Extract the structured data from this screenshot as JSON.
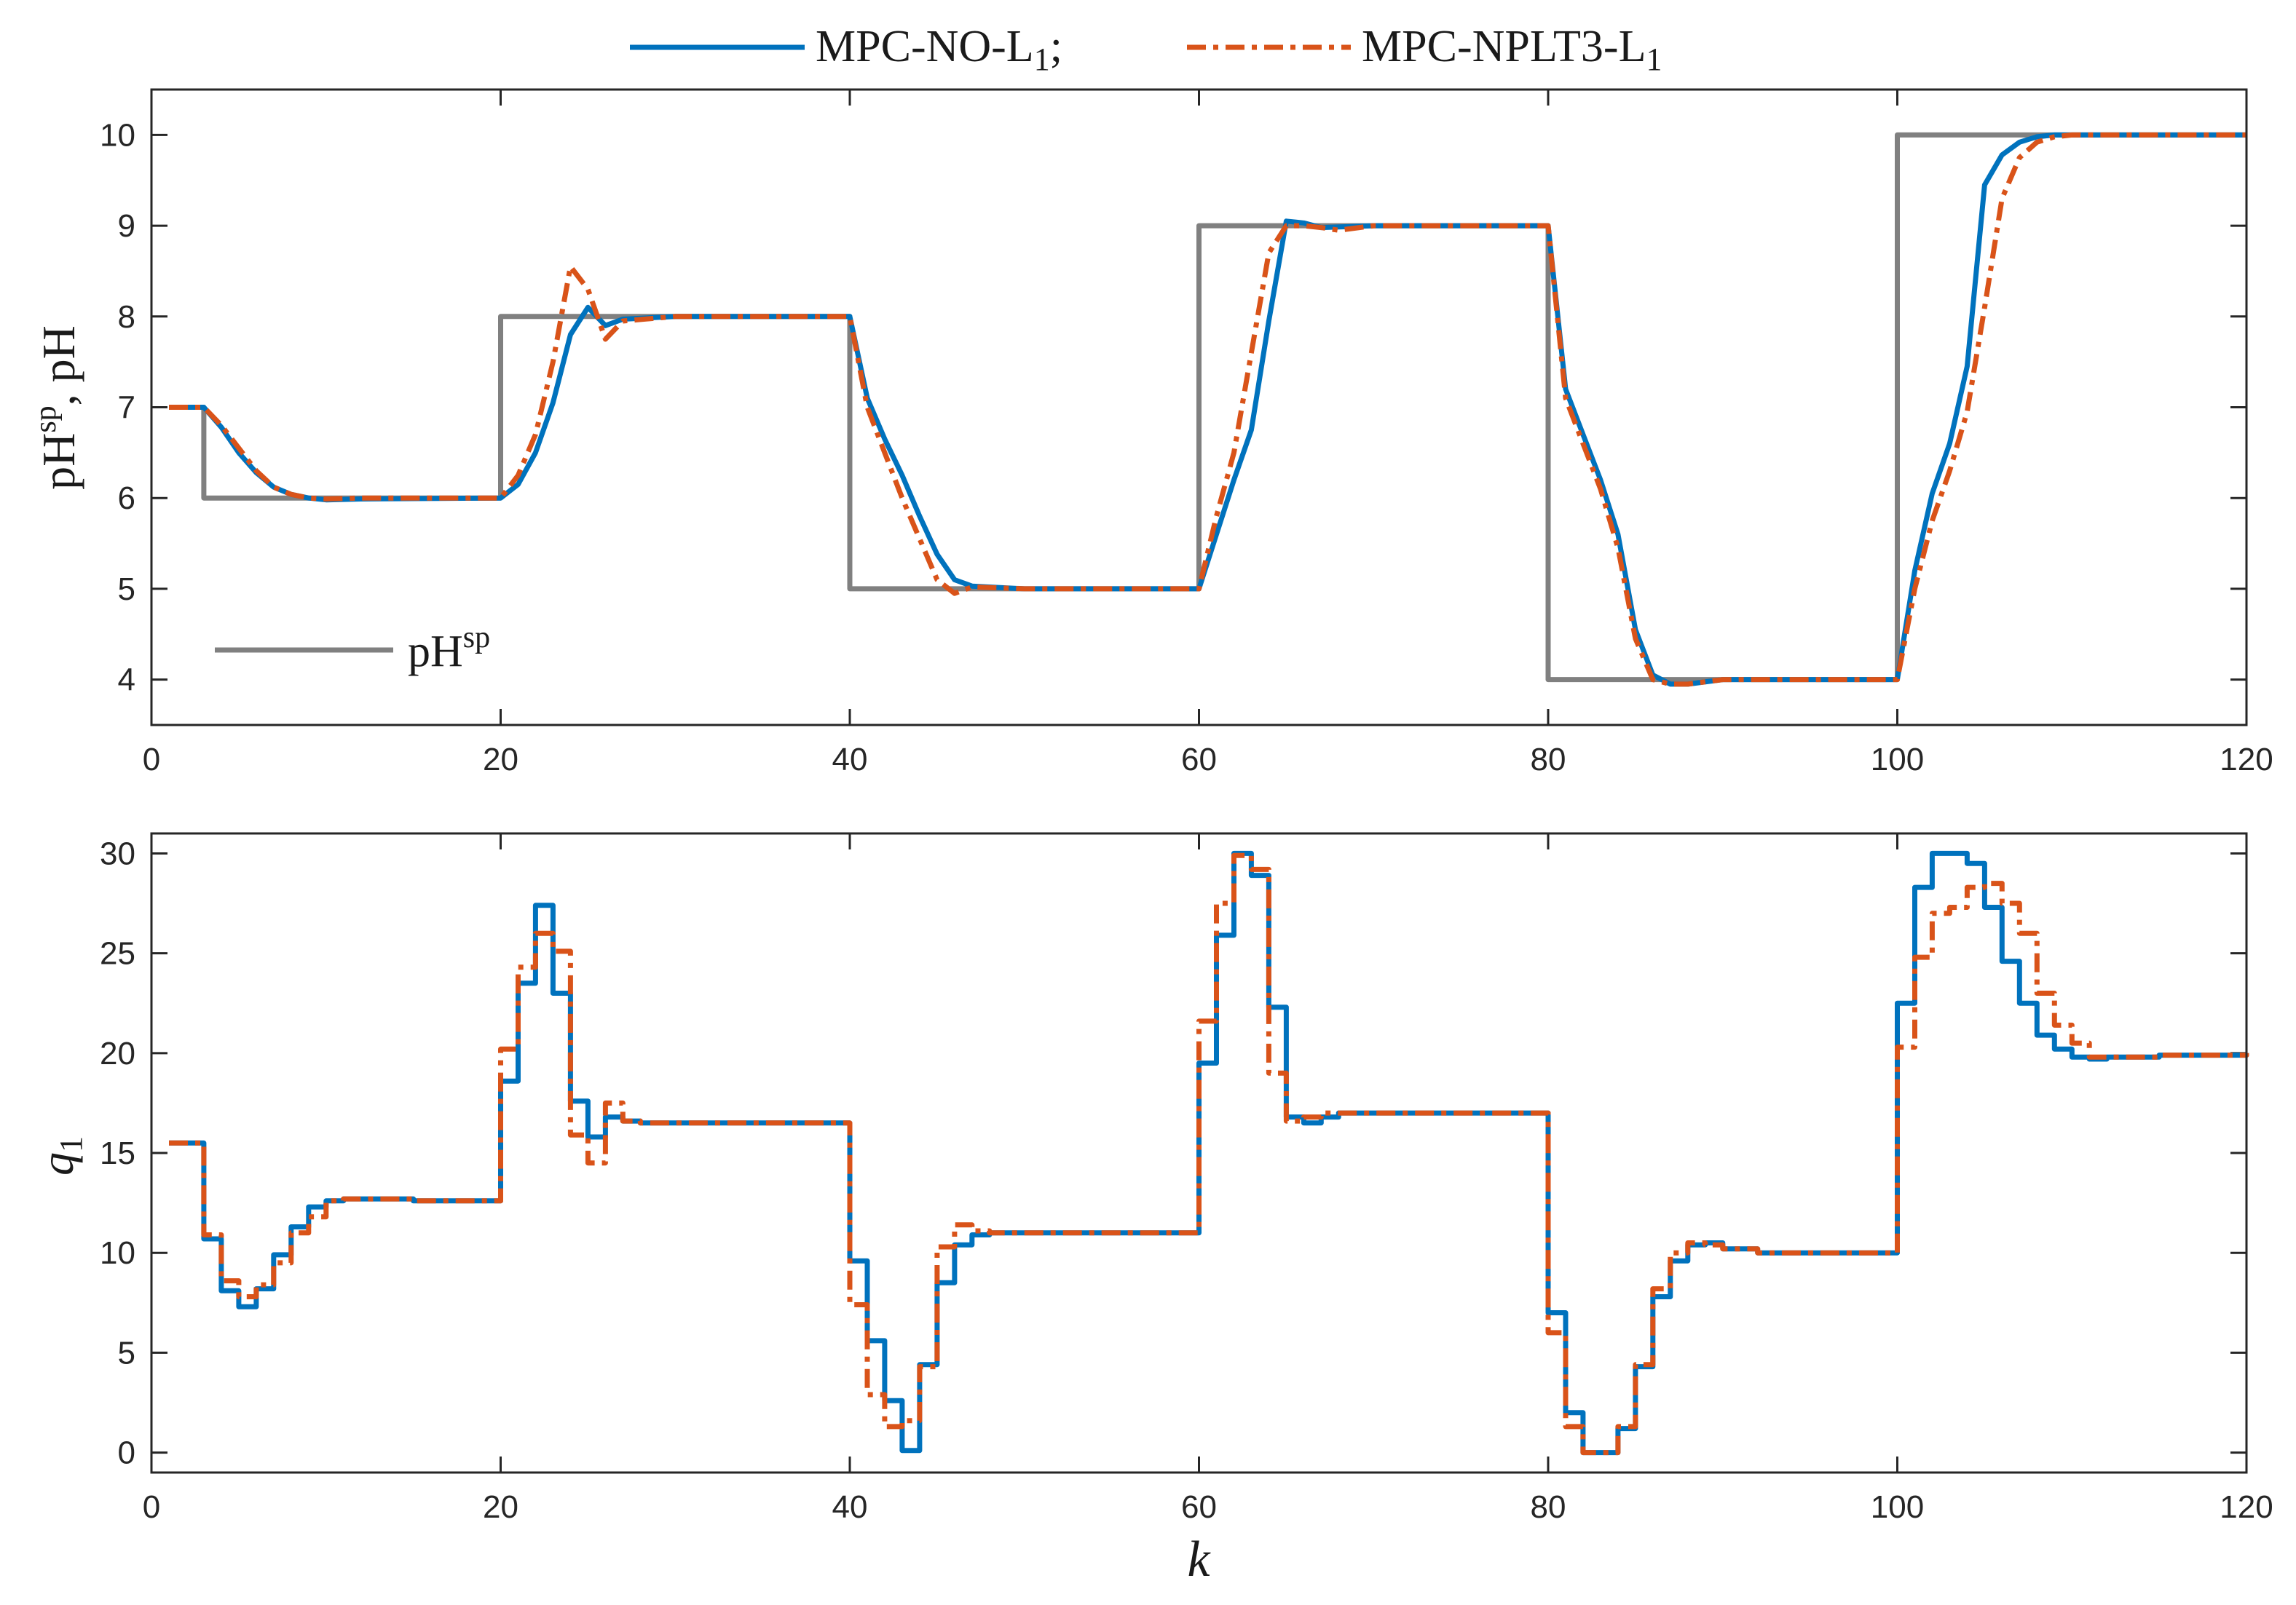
{
  "legend": {
    "series_no": "MPC-NO-L",
    "series_no_sub": "1",
    "separator": ";",
    "series_nplt3": "MPC-NPLT3-L",
    "series_nplt3_sub": "1"
  },
  "colors": {
    "no": "#0072bd",
    "nplt3": "#d95319",
    "setpoint": "#808080",
    "axes": "#262626"
  },
  "chart_data": [
    {
      "type": "line",
      "name": "ph-plot",
      "ylabel_main": "pH",
      "ylabel_sup": "sp",
      "ylabel_rest": ",  pH",
      "setpoint_legend_main": "pH",
      "setpoint_legend_sup": "sp",
      "setpoint_legend_placement": "bottom-left",
      "xlim": [
        0,
        120
      ],
      "ylim": [
        3.5,
        10.5
      ],
      "xticks": [
        "0",
        "20",
        "40",
        "60",
        "80",
        "100",
        "120"
      ],
      "yticks": [
        "4",
        "5",
        "6",
        "7",
        "8",
        "9",
        "10"
      ],
      "series": [
        {
          "key": "setpoint",
          "name": "pHsp",
          "style": "solid",
          "x": [
            1,
            3,
            3,
            20,
            20,
            40,
            40,
            60,
            60,
            80,
            80,
            100,
            100,
            120
          ],
          "y": [
            7,
            7,
            6,
            6,
            8,
            8,
            5,
            5,
            9,
            9,
            4,
            4,
            10,
            10
          ]
        },
        {
          "key": "no",
          "name": "MPC-NO-L1",
          "style": "solid",
          "x": [
            1,
            3,
            4,
            5,
            6,
            7,
            8,
            9,
            10,
            12,
            20,
            21,
            22,
            23,
            24,
            25,
            26,
            27,
            30,
            40,
            41,
            42,
            43,
            44,
            45,
            46,
            47,
            50,
            60,
            61,
            62,
            63,
            64,
            65,
            66,
            67,
            70,
            80,
            81,
            82,
            83,
            84,
            85,
            86,
            87,
            88,
            90,
            100,
            101,
            102,
            103,
            104,
            105,
            106,
            107,
            108,
            109,
            110,
            120
          ],
          "y": [
            7,
            7,
            6.78,
            6.5,
            6.28,
            6.12,
            6.04,
            6.0,
            5.98,
            5.99,
            6.0,
            6.15,
            6.5,
            7.05,
            7.8,
            8.1,
            7.9,
            7.97,
            8.0,
            8.0,
            7.1,
            6.65,
            6.25,
            5.8,
            5.38,
            5.1,
            5.03,
            5.0,
            5.0,
            5.6,
            6.2,
            6.75,
            7.95,
            9.05,
            9.03,
            8.98,
            9.0,
            9.0,
            7.2,
            6.7,
            6.2,
            5.6,
            4.55,
            4.05,
            3.95,
            3.95,
            4.0,
            4.0,
            5.2,
            6.05,
            6.6,
            7.45,
            9.45,
            9.78,
            9.92,
            9.98,
            10.0,
            10.0,
            10.0
          ]
        },
        {
          "key": "nplt3",
          "name": "MPC-NPLT3-L1",
          "style": "dashdot",
          "x": [
            1,
            3,
            4,
            5,
            6,
            7,
            8,
            9,
            10,
            12,
            20,
            21,
            22,
            23,
            24,
            25,
            26,
            27,
            30,
            40,
            41,
            42,
            43,
            44,
            45,
            46,
            47,
            50,
            60,
            61,
            62,
            63,
            64,
            65,
            66,
            67,
            68,
            70,
            80,
            81,
            82,
            83,
            84,
            85,
            86,
            87,
            88,
            90,
            100,
            101,
            102,
            103,
            104,
            105,
            106,
            107,
            108,
            109,
            110,
            120
          ],
          "y": [
            7,
            7,
            6.8,
            6.55,
            6.3,
            6.12,
            6.04,
            6.0,
            5.99,
            6.0,
            6.0,
            6.25,
            6.7,
            7.5,
            8.55,
            8.3,
            7.75,
            7.95,
            8.0,
            8.0,
            7.0,
            6.5,
            6.0,
            5.55,
            5.1,
            4.95,
            5.02,
            5.0,
            5.0,
            5.8,
            6.5,
            7.6,
            8.7,
            9.0,
            9.0,
            8.98,
            8.95,
            9.0,
            9.0,
            7.1,
            6.6,
            6.1,
            5.45,
            4.45,
            4.0,
            3.95,
            3.95,
            4.0,
            4.0,
            5.0,
            5.75,
            6.3,
            6.95,
            8.1,
            9.3,
            9.75,
            9.92,
            9.98,
            10.0,
            10.0
          ]
        }
      ]
    },
    {
      "type": "line",
      "name": "q1-plot",
      "step": true,
      "xlabel": "k",
      "ylabel_main": "q",
      "ylabel_sub": "1",
      "xlim": [
        0,
        120
      ],
      "ylim": [
        -1,
        31
      ],
      "xticks": [
        "0",
        "20",
        "40",
        "60",
        "80",
        "100",
        "120"
      ],
      "yticks": [
        "0",
        "5",
        "10",
        "15",
        "20",
        "25",
        "30"
      ],
      "series": [
        {
          "key": "no",
          "name": "MPC-NO-L1",
          "style": "solid",
          "x": [
            1,
            3,
            4,
            5,
            6,
            7,
            8,
            9,
            10,
            11,
            12,
            15,
            20,
            21,
            22,
            23,
            24,
            25,
            26,
            27,
            28,
            30,
            40,
            41,
            42,
            43,
            44,
            45,
            46,
            47,
            48,
            50,
            60,
            61,
            62,
            63,
            64,
            65,
            66,
            67,
            68,
            70,
            80,
            81,
            82,
            83,
            84,
            85,
            86,
            87,
            88,
            89,
            90,
            92,
            100,
            101,
            102,
            103,
            104,
            105,
            106,
            107,
            108,
            109,
            110,
            111,
            112,
            115,
            120
          ],
          "y": [
            15.5,
            10.7,
            8.1,
            7.3,
            8.2,
            9.9,
            11.3,
            12.3,
            12.6,
            12.7,
            12.7,
            12.6,
            18.6,
            23.5,
            27.4,
            23.0,
            17.6,
            15.8,
            16.8,
            16.6,
            16.5,
            16.5,
            9.6,
            5.6,
            2.6,
            0.1,
            4.4,
            8.5,
            10.4,
            10.9,
            11.0,
            11.0,
            19.5,
            25.9,
            30.0,
            28.9,
            22.3,
            16.8,
            16.5,
            16.8,
            17.0,
            17.0,
            7.0,
            2.0,
            0.0,
            0.0,
            1.2,
            4.3,
            7.8,
            9.6,
            10.4,
            10.5,
            10.2,
            10.0,
            22.5,
            28.3,
            30.0,
            30.0,
            29.5,
            27.3,
            24.6,
            22.5,
            20.9,
            20.2,
            19.8,
            19.7,
            19.8,
            19.9,
            20.0
          ]
        },
        {
          "key": "nplt3",
          "name": "MPC-NPLT3-L1",
          "style": "dashdot",
          "x": [
            1,
            3,
            4,
            5,
            6,
            7,
            8,
            9,
            10,
            11,
            12,
            15,
            20,
            21,
            22,
            23,
            24,
            25,
            26,
            27,
            28,
            30,
            40,
            41,
            42,
            43,
            44,
            45,
            46,
            47,
            48,
            50,
            60,
            61,
            62,
            63,
            64,
            65,
            66,
            67,
            68,
            70,
            80,
            81,
            82,
            83,
            84,
            85,
            86,
            87,
            88,
            89,
            90,
            92,
            100,
            101,
            102,
            103,
            104,
            105,
            106,
            107,
            108,
            109,
            110,
            111,
            112,
            115,
            120
          ],
          "y": [
            15.5,
            10.9,
            8.6,
            7.8,
            8.4,
            9.5,
            11.0,
            11.8,
            12.6,
            12.7,
            12.7,
            12.6,
            20.2,
            24.3,
            26.0,
            25.1,
            15.9,
            14.5,
            17.5,
            16.6,
            16.5,
            16.5,
            7.4,
            2.9,
            1.3,
            1.6,
            4.3,
            10.3,
            11.4,
            11.1,
            11.0,
            11.0,
            21.6,
            27.5,
            29.9,
            29.2,
            19.0,
            16.6,
            16.8,
            17.0,
            17.0,
            17.0,
            6.0,
            1.3,
            0.0,
            0.0,
            1.3,
            4.4,
            8.2,
            10.0,
            10.5,
            10.4,
            10.2,
            10.0,
            20.3,
            24.8,
            27.0,
            27.3,
            28.3,
            28.5,
            27.5,
            26.0,
            23.0,
            21.4,
            20.5,
            19.8,
            19.8,
            19.9,
            20.0
          ]
        }
      ]
    }
  ]
}
